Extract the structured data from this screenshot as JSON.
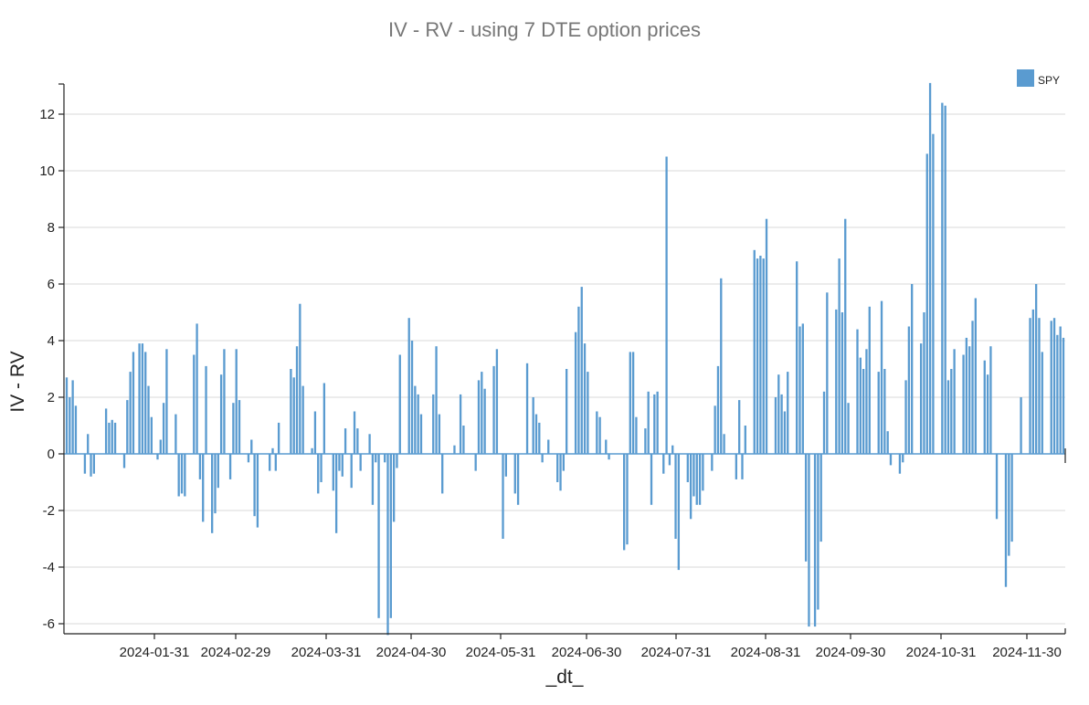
{
  "chart_data": {
    "type": "bar",
    "title": "IV - RV  - using 7 DTE option prices",
    "xlabel": "_dt_",
    "ylabel": "IV - RV",
    "ylim": [
      -6.5,
      13.2
    ],
    "y_ticks": [
      -6,
      -4,
      -2,
      0,
      2,
      4,
      6,
      8,
      10,
      12
    ],
    "y_tick_labels": [
      "-6",
      "-4",
      "-2",
      "0",
      "2",
      "4",
      "6",
      "8",
      "10",
      "12"
    ],
    "x_tick_labels": [
      "2024-01-31",
      "2024-02-29",
      "2024-03-31",
      "2024-04-30",
      "2024-05-31",
      "2024-06-30",
      "2024-07-31",
      "2024-08-31",
      "2024-09-30",
      "2024-10-31",
      "2024-11-30"
    ],
    "legend": {
      "placement": "top-right",
      "entries": [
        "SPY"
      ]
    },
    "bar_color": "#5a9bd0",
    "series": [
      {
        "name": "SPY",
        "values": [
          2.7,
          2.0,
          2.6,
          1.7,
          0,
          0,
          -0.7,
          0.7,
          -0.8,
          -0.7,
          0,
          0,
          0,
          1.6,
          1.1,
          1.2,
          1.1,
          0,
          0,
          -0.5,
          1.9,
          2.9,
          3.6,
          0,
          3.9,
          3.9,
          3.6,
          2.4,
          1.3,
          0,
          -0.2,
          0.5,
          1.8,
          3.7,
          0,
          0,
          1.4,
          -1.5,
          -1.4,
          -1.5,
          0,
          0,
          3.5,
          4.6,
          -0.9,
          -2.4,
          3.1,
          0,
          -2.8,
          -2.1,
          -1.2,
          2.8,
          3.7,
          0,
          -0.9,
          1.8,
          3.7,
          1.9,
          0,
          0,
          -0.3,
          0.5,
          -2.2,
          -2.6,
          0,
          0,
          0,
          -0.6,
          0.2,
          -0.6,
          1.1,
          0,
          0,
          0,
          3.0,
          2.7,
          3.8,
          5.3,
          2.4,
          0,
          0,
          0.2,
          1.5,
          -1.4,
          -1.0,
          2.5,
          0,
          0,
          -1.3,
          -2.8,
          -0.6,
          -0.8,
          0.9,
          0,
          -1.2,
          1.5,
          0.9,
          -0.6,
          0,
          0,
          0.7,
          -1.8,
          -0.3,
          -5.8,
          0,
          -0.3,
          -6.4,
          -5.8,
          -2.4,
          -0.5,
          3.5,
          0,
          0,
          4.8,
          4.0,
          2.4,
          2.1,
          1.4,
          0,
          0,
          0,
          2.1,
          3.8,
          1.4,
          -1.4,
          0,
          0,
          0,
          0.3,
          0,
          2.1,
          1.0,
          0,
          0,
          0,
          -0.6,
          2.6,
          2.9,
          2.3,
          0,
          0,
          3.1,
          3.7,
          0,
          -3.0,
          -0.8,
          0,
          0,
          -1.4,
          -1.8,
          0,
          0,
          3.2,
          0,
          2.0,
          1.4,
          1.1,
          -0.3,
          0,
          0.5,
          0,
          0,
          -1.0,
          -1.3,
          -0.6,
          3.0,
          0,
          0,
          4.3,
          5.2,
          5.9,
          3.9,
          2.9,
          0,
          0,
          1.5,
          1.3,
          0,
          0.5,
          -0.2,
          0,
          0,
          0,
          0,
          -3.4,
          -3.2,
          3.6,
          3.6,
          1.3,
          0,
          0,
          0.9,
          2.2,
          -1.8,
          2.1,
          2.2,
          0,
          -0.7,
          10.5,
          -0.4,
          0.3,
          -3.0,
          -4.1,
          0,
          0,
          -1.0,
          -2.3,
          -1.5,
          -1.8,
          -1.8,
          -1.3,
          0,
          0,
          -0.6,
          1.7,
          3.1,
          6.2,
          0.7,
          0,
          0,
          0,
          -0.9,
          1.9,
          -0.9,
          1.0,
          0,
          0,
          7.2,
          6.9,
          7.0,
          6.9,
          8.3,
          0,
          0,
          2.0,
          2.8,
          2.1,
          1.5,
          2.9,
          0,
          0,
          6.8,
          4.5,
          4.6,
          -3.8,
          -6.1,
          0,
          -6.1,
          -5.5,
          -3.1,
          2.2,
          5.7,
          0,
          0,
          5.1,
          6.9,
          5.0,
          8.3,
          1.8,
          0,
          0,
          4.4,
          3.4,
          3.0,
          3.7,
          5.2,
          0,
          0,
          2.9,
          5.4,
          3.0,
          0.8,
          -0.4,
          0,
          0,
          -0.7,
          -0.3,
          2.6,
          4.5,
          6.0,
          0,
          0,
          3.9,
          5.0,
          10.6,
          13.1,
          11.3,
          0,
          0,
          12.4,
          12.3,
          2.6,
          3.0,
          3.7,
          0,
          0,
          3.5,
          4.1,
          3.8,
          4.7,
          5.5,
          0,
          0,
          3.3,
          2.8,
          3.8,
          0,
          -2.3,
          0,
          0,
          -4.7,
          -3.6,
          -3.1,
          0,
          0,
          2.0,
          0,
          0,
          4.8,
          5.1,
          6.0,
          4.8,
          3.6,
          0,
          0,
          4.7,
          4.8,
          4.2,
          4.5,
          4.1
        ]
      }
    ]
  }
}
